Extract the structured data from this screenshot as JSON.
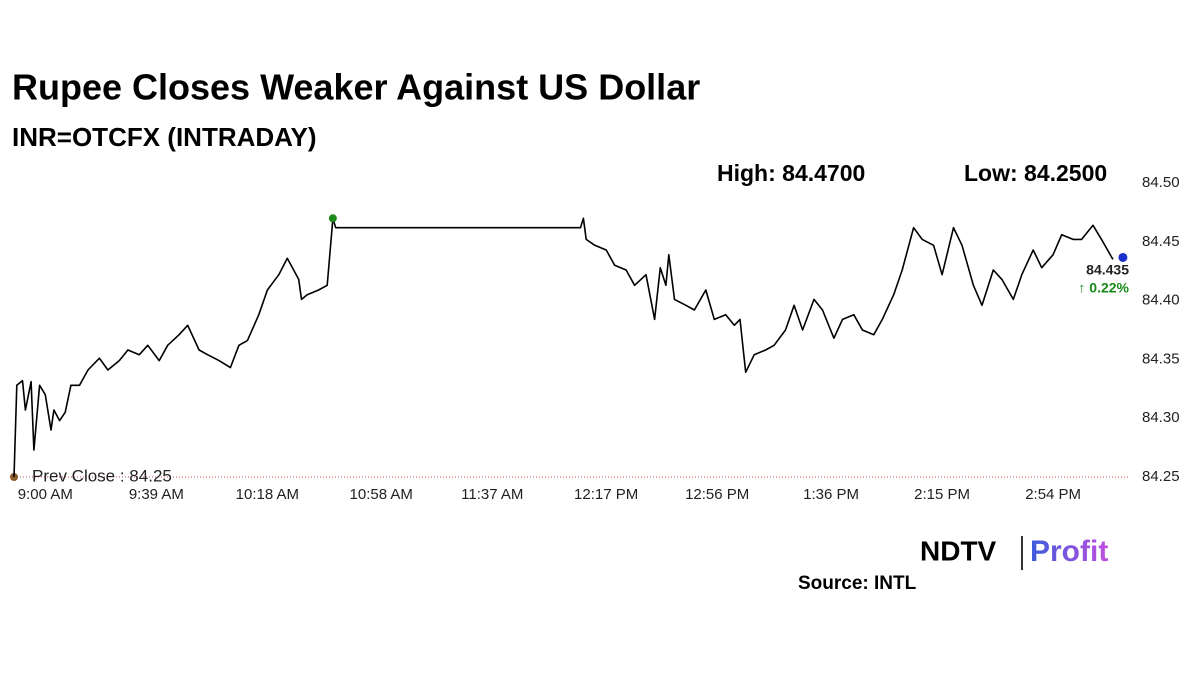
{
  "chart_data": {
    "type": "line",
    "title": "Rupee Closes Weaker Against US Dollar",
    "subtitle": "INR=OTCFX (INTRADAY)",
    "high_label": "High: 84.4700",
    "low_label": "Low: 84.2500",
    "last_price": "84.435",
    "change": "↑ 0.22%",
    "prev_close": {
      "value": 84.25,
      "label": "Prev Close : 84.25"
    },
    "source": "Source: INTL",
    "logo": [
      "NDTV",
      "Profit"
    ],
    "color": "#000000",
    "x": [
      529,
      530,
      532,
      533,
      535,
      536,
      538,
      540,
      542,
      543,
      545,
      547,
      549,
      552,
      555,
      559,
      562,
      566,
      569,
      573,
      576,
      580,
      583,
      587,
      590,
      594,
      597,
      601,
      605,
      608,
      611,
      615,
      618,
      622,
      625,
      629,
      630,
      632,
      636,
      639,
      641,
      642,
      728,
      729,
      730,
      733,
      737,
      740,
      744,
      747,
      751,
      754,
      756,
      758,
      759,
      761,
      765,
      768,
      772,
      775,
      779,
      782,
      784,
      786,
      789,
      793,
      796,
      800,
      803,
      806,
      810,
      813,
      817,
      820,
      824,
      827,
      831,
      834,
      838,
      841,
      845,
      848,
      852,
      855,
      859,
      862,
      866,
      869,
      873,
      876,
      880,
      883,
      887,
      890,
      894,
      897,
      901,
      904,
      908,
      911,
      915
    ],
    "values": [
      84.25,
      84.328,
      84.332,
      84.307,
      84.331,
      84.273,
      84.328,
      84.32,
      84.29,
      84.307,
      84.298,
      84.305,
      84.328,
      84.328,
      84.341,
      84.351,
      84.341,
      84.349,
      84.358,
      84.354,
      84.362,
      84.349,
      84.362,
      84.371,
      84.379,
      84.358,
      84.354,
      84.349,
      84.343,
      84.362,
      84.366,
      84.388,
      84.409,
      84.422,
      84.436,
      84.418,
      84.401,
      84.405,
      84.409,
      84.413,
      84.47,
      84.462,
      84.462,
      84.47,
      84.452,
      84.447,
      84.443,
      84.43,
      84.426,
      84.413,
      84.422,
      84.384,
      84.428,
      84.413,
      84.439,
      84.401,
      84.396,
      84.392,
      84.409,
      84.384,
      84.388,
      84.379,
      84.384,
      84.339,
      84.354,
      84.358,
      84.362,
      84.375,
      84.396,
      84.375,
      84.401,
      84.392,
      84.368,
      84.384,
      84.388,
      84.375,
      84.371,
      84.384,
      84.405,
      84.426,
      84.462,
      84.452,
      84.447,
      84.422,
      84.462,
      84.447,
      84.413,
      84.396,
      84.426,
      84.418,
      84.401,
      84.422,
      84.443,
      84.428,
      84.439,
      84.456,
      84.452,
      84.452,
      84.464,
      84.452,
      84.435
    ],
    "xlim": [
      529,
      921
    ],
    "xticks": [
      {
        "value": 540,
        "label": "9:00 AM"
      },
      {
        "value": 579,
        "label": "9:39 AM"
      },
      {
        "value": 618,
        "label": "10:18 AM"
      },
      {
        "value": 658,
        "label": "10:58 AM"
      },
      {
        "value": 697,
        "label": "11:37 AM"
      },
      {
        "value": 737,
        "label": "12:17 PM"
      },
      {
        "value": 776,
        "label": "12:56 PM"
      },
      {
        "value": 816,
        "label": "1:36 PM"
      },
      {
        "value": 855,
        "label": "2:15 PM"
      },
      {
        "value": 894,
        "label": "2:54 PM"
      }
    ],
    "ylim": [
      84.25,
      84.5
    ],
    "yticks": [
      {
        "value": 84.25,
        "label": "84.25"
      },
      {
        "value": 84.3,
        "label": "84.30"
      },
      {
        "value": 84.35,
        "label": "84.35"
      },
      {
        "value": 84.4,
        "label": "84.40"
      },
      {
        "value": 84.45,
        "label": "84.45"
      },
      {
        "value": 84.5,
        "label": "84.50"
      }
    ]
  }
}
